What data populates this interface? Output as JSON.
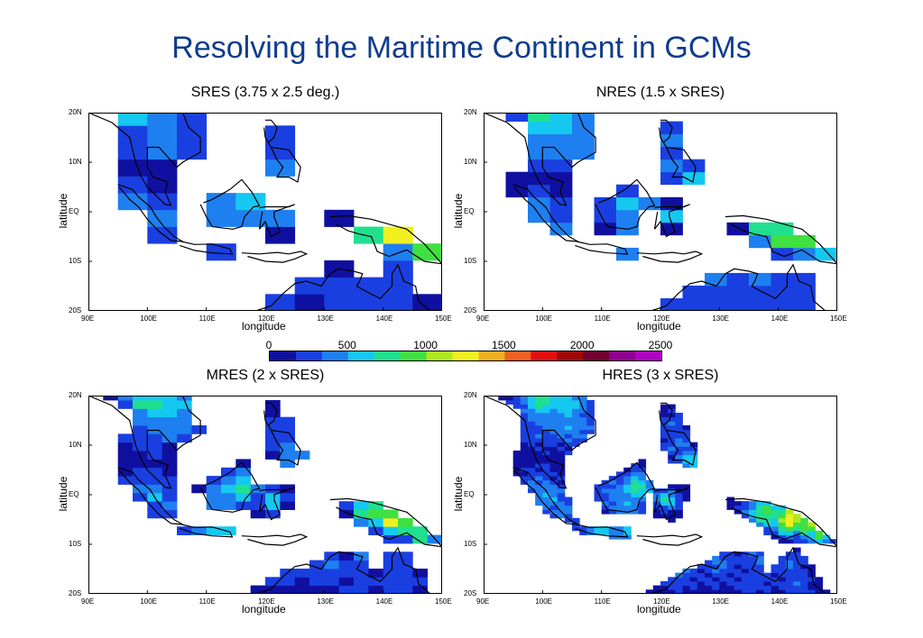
{
  "title": "Resolving the Maritime Continent in GCMs",
  "panels": [
    {
      "title": "SRES (3.75 x 2.5 deg.)",
      "cell": 4
    },
    {
      "title": "NRES (1.5 x SRES)",
      "cell": 3
    },
    {
      "title": "MRES (2 x SRES)",
      "cell": 2
    },
    {
      "title": "HRES (3 x SRES)",
      "cell": 1
    }
  ],
  "axes": {
    "xlabel": "longitude",
    "ylabel": "latitude",
    "xticks": [
      "90E",
      "100E",
      "110E",
      "120E",
      "130E",
      "140E",
      "150E"
    ],
    "yticks": [
      "20N",
      "10N",
      "EQ",
      "10S",
      "20S"
    ]
  },
  "colorbar": {
    "labels": [
      "0",
      "500",
      "1000",
      "1500",
      "2000",
      "2500"
    ],
    "colors": [
      "#1010a0",
      "#1a3fe0",
      "#1e7ff0",
      "#15c8f0",
      "#20e090",
      "#40e040",
      "#b0e820",
      "#f0f020",
      "#f0b020",
      "#f06020",
      "#e01010",
      "#a00808",
      "#700030",
      "#900090",
      "#b000c0"
    ]
  }
}
